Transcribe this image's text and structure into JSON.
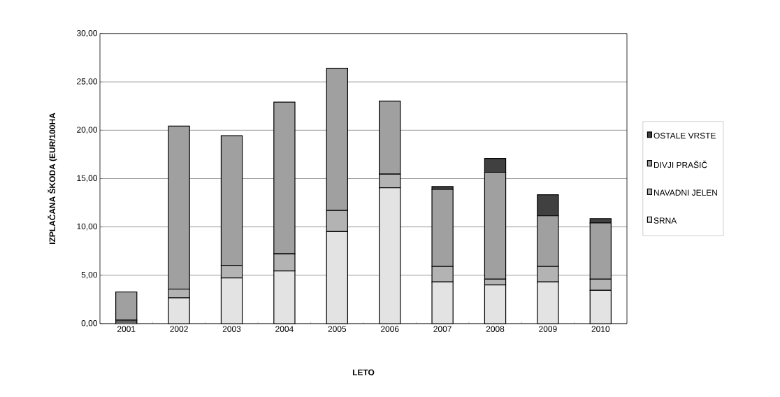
{
  "chart_data": {
    "type": "bar",
    "stacked": true,
    "xlabel": "LETO",
    "ylabel": "IZPLAČANA ŠKODA (EUR/100HA",
    "categories": [
      "2001",
      "2002",
      "2003",
      "2004",
      "2005",
      "2006",
      "2007",
      "2008",
      "2009",
      "2010"
    ],
    "series": [
      {
        "name": "SRNA",
        "color": "#e3e3e3",
        "values": [
          0.15,
          2.67,
          4.72,
          5.45,
          9.52,
          14.05,
          4.31,
          4.0,
          4.31,
          3.44
        ]
      },
      {
        "name": "NAVADNI JELEN",
        "color": "#b3b3b3",
        "values": [
          0.2,
          0.89,
          1.31,
          1.77,
          2.18,
          1.41,
          1.6,
          0.6,
          1.6,
          1.16
        ]
      },
      {
        "name": "DIVJI PRAŠIČ",
        "color": "#a0a0a0",
        "values": [
          2.92,
          16.87,
          13.4,
          15.68,
          14.71,
          7.56,
          7.97,
          11.05,
          5.24,
          5.82
        ]
      },
      {
        "name": "OSTALE VRSTE",
        "color": "#404040",
        "values": [
          0,
          0,
          0,
          0,
          0,
          0,
          0.29,
          1.43,
          2.18,
          0.44
        ]
      }
    ],
    "ylim": [
      0,
      30
    ],
    "yticks": [
      {
        "value": 0,
        "label": "0,00"
      },
      {
        "value": 5,
        "label": "5,00"
      },
      {
        "value": 10,
        "label": "10,00"
      },
      {
        "value": 15,
        "label": "15,00"
      },
      {
        "value": 20,
        "label": "20,00"
      },
      {
        "value": 25,
        "label": "25,00"
      },
      {
        "value": 30,
        "label": "30,00"
      }
    ],
    "grid": "y",
    "legend": "right"
  }
}
